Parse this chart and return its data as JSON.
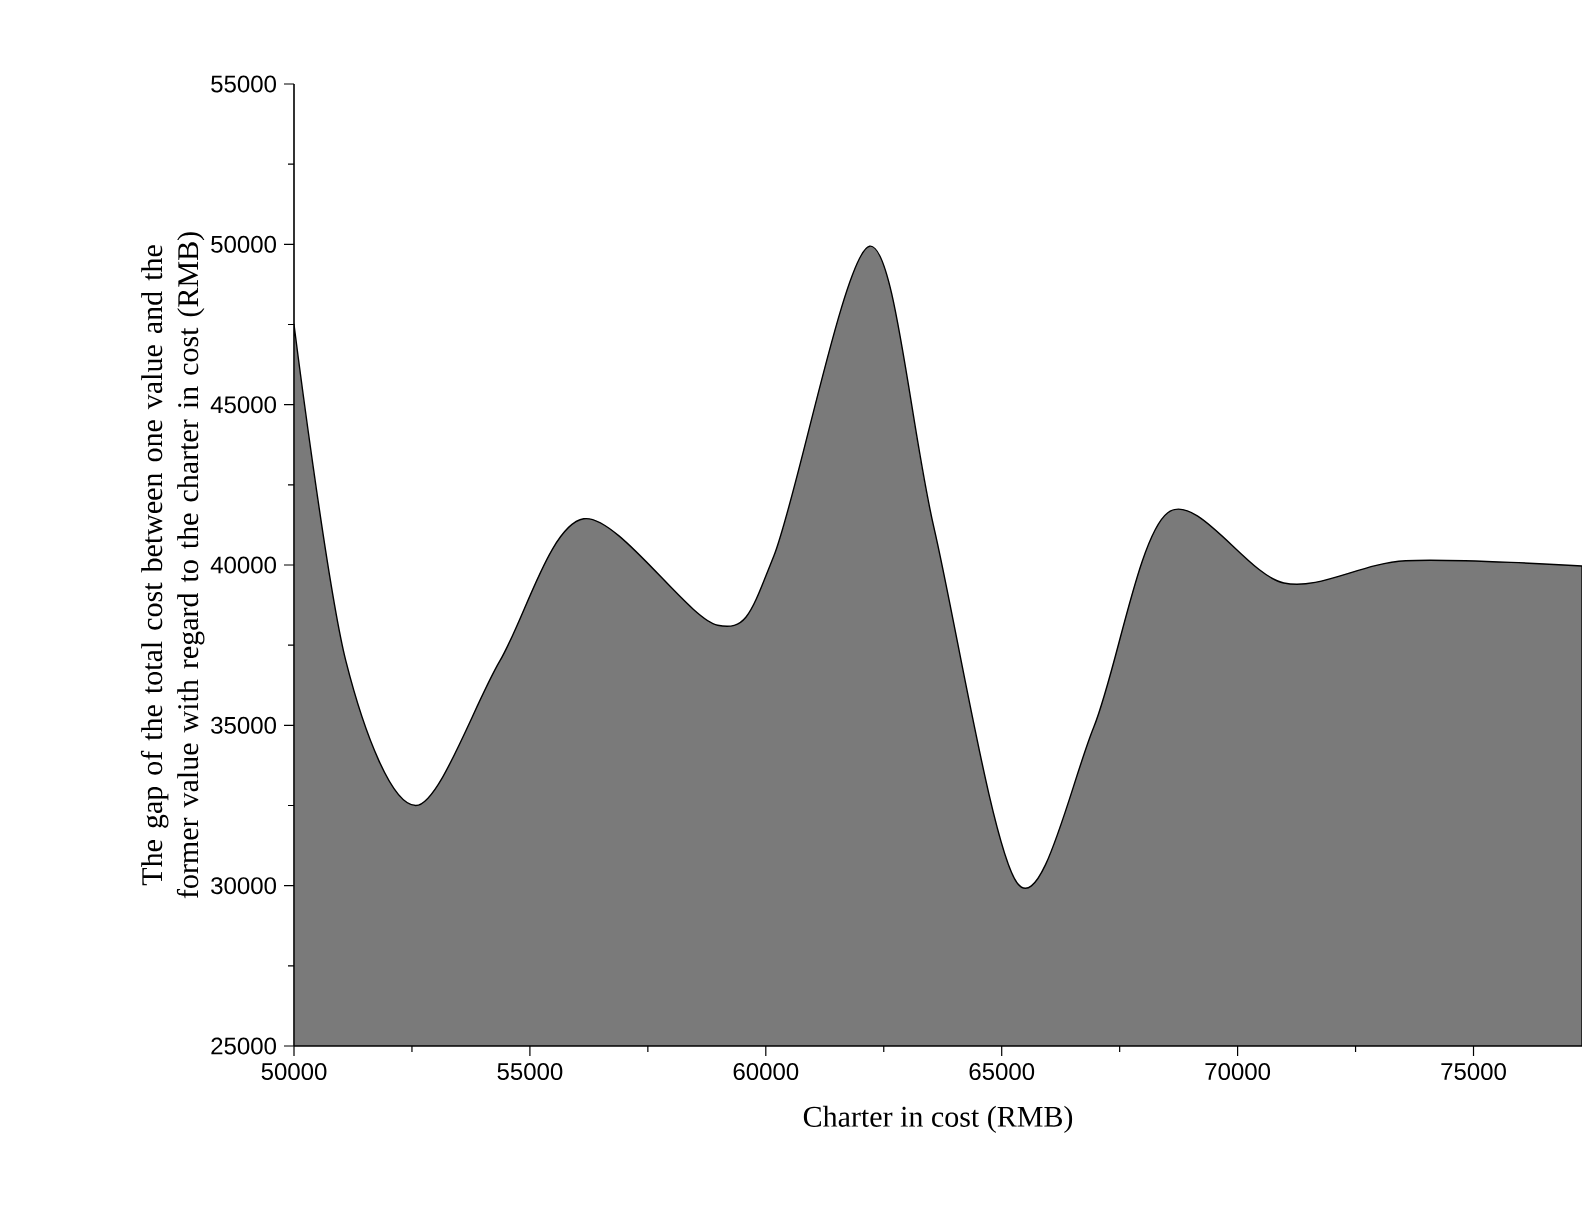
{
  "chart_data": {
    "type": "area",
    "xlabel": "Charter in cost (RMB)",
    "ylabel": "The gap of the total cost between one value and the former value with regard to the charter in cost (RMB)",
    "x": [
      50000,
      51100,
      52580,
      54360,
      56140,
      58980,
      60170,
      62200,
      63560,
      65340,
      66950,
      68520,
      70980,
      73560,
      77300
    ],
    "values": [
      47500,
      37000,
      32500,
      37000,
      41440,
      38120,
      40280,
      49940,
      41190,
      30060,
      34940,
      41630,
      39440,
      40130,
      39970
    ],
    "color": "#7a7a7a",
    "xlim": [
      50000,
      77300
    ],
    "xticks": [
      50000,
      55000,
      60000,
      65000,
      70000,
      75000
    ],
    "ylim": [
      25000,
      55000
    ],
    "yticks": [
      25000,
      30000,
      35000,
      40000,
      45000,
      50000,
      55000
    ],
    "grid": false
  }
}
